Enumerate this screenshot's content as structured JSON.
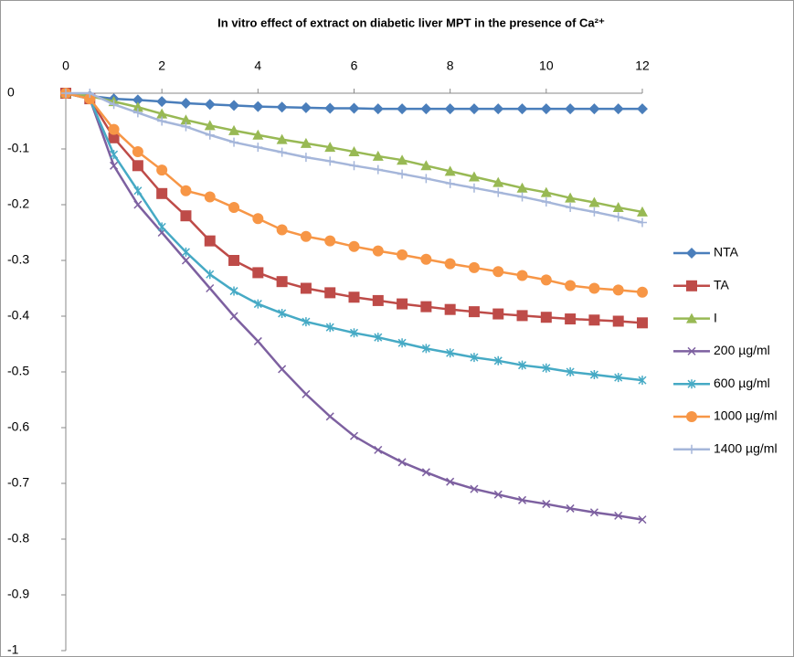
{
  "chart_data": {
    "type": "line",
    "title": "In vitro effect of extract on diabetic liver MPT in the presence of Ca²⁺",
    "x": [
      0,
      0.5,
      1,
      1.5,
      2,
      2.5,
      3,
      3.5,
      4,
      4.5,
      5,
      5.5,
      6,
      6.5,
      7,
      7.5,
      8,
      8.5,
      9,
      9.5,
      10,
      10.5,
      11,
      11.5,
      12
    ],
    "xlim": [
      0,
      12
    ],
    "xticks": [
      0,
      2,
      4,
      6,
      8,
      10,
      12
    ],
    "ylim": [
      -1,
      0
    ],
    "yticks": [
      0,
      -0.1,
      -0.2,
      -0.3,
      -0.4,
      -0.5,
      -0.6,
      -0.7,
      -0.8,
      -0.9,
      -1
    ],
    "legend": "right",
    "series": [
      {
        "name": "NTA",
        "color": "#4a7ebb",
        "marker": "diamond",
        "values": [
          0,
          -0.005,
          -0.01,
          -0.012,
          -0.015,
          -0.018,
          -0.02,
          -0.022,
          -0.024,
          -0.025,
          -0.026,
          -0.027,
          -0.027,
          -0.028,
          -0.028,
          -0.028,
          -0.028,
          -0.028,
          -0.028,
          -0.028,
          -0.028,
          -0.028,
          -0.028,
          -0.028,
          -0.028
        ]
      },
      {
        "name": "TA",
        "color": "#be4b48",
        "marker": "square",
        "values": [
          0,
          -0.01,
          -0.08,
          -0.13,
          -0.18,
          -0.22,
          -0.265,
          -0.3,
          -0.322,
          -0.338,
          -0.35,
          -0.358,
          -0.366,
          -0.372,
          -0.378,
          -0.383,
          -0.388,
          -0.392,
          -0.396,
          -0.399,
          -0.402,
          -0.405,
          -0.407,
          -0.409,
          -0.412
        ]
      },
      {
        "name": "I",
        "color": "#98b954",
        "marker": "triangle",
        "values": [
          0,
          -0.005,
          -0.015,
          -0.025,
          -0.037,
          -0.048,
          -0.058,
          -0.067,
          -0.075,
          -0.083,
          -0.09,
          -0.097,
          -0.105,
          -0.113,
          -0.12,
          -0.13,
          -0.14,
          -0.15,
          -0.16,
          -0.17,
          -0.178,
          -0.188,
          -0.196,
          -0.205,
          -0.213
        ]
      },
      {
        "name": "200 µg/ml",
        "color": "#7d60a0",
        "marker": "x",
        "values": [
          0,
          -0.01,
          -0.13,
          -0.2,
          -0.25,
          -0.3,
          -0.35,
          -0.4,
          -0.445,
          -0.495,
          -0.54,
          -0.58,
          -0.615,
          -0.64,
          -0.662,
          -0.68,
          -0.697,
          -0.71,
          -0.72,
          -0.73,
          -0.737,
          -0.745,
          -0.752,
          -0.758,
          -0.765
        ]
      },
      {
        "name": "600 µg/ml",
        "color": "#46aac5",
        "marker": "star",
        "values": [
          0,
          -0.01,
          -0.11,
          -0.175,
          -0.24,
          -0.285,
          -0.325,
          -0.355,
          -0.378,
          -0.395,
          -0.41,
          -0.42,
          -0.43,
          -0.438,
          -0.448,
          -0.458,
          -0.466,
          -0.474,
          -0.48,
          -0.488,
          -0.493,
          -0.5,
          -0.505,
          -0.51,
          -0.515
        ]
      },
      {
        "name": "1000 µg/ml",
        "color": "#f79646",
        "marker": "circle",
        "values": [
          0,
          -0.01,
          -0.065,
          -0.105,
          -0.138,
          -0.175,
          -0.186,
          -0.205,
          -0.225,
          -0.245,
          -0.257,
          -0.265,
          -0.275,
          -0.283,
          -0.29,
          -0.298,
          -0.306,
          -0.313,
          -0.32,
          -0.327,
          -0.335,
          -0.345,
          -0.35,
          -0.353,
          -0.357
        ]
      },
      {
        "name": "1400 µg/ml",
        "color": "#a5b6da",
        "marker": "plus",
        "values": [
          0,
          0,
          -0.02,
          -0.035,
          -0.05,
          -0.06,
          -0.075,
          -0.088,
          -0.097,
          -0.106,
          -0.115,
          -0.122,
          -0.13,
          -0.137,
          -0.145,
          -0.153,
          -0.162,
          -0.17,
          -0.178,
          -0.186,
          -0.195,
          -0.205,
          -0.213,
          -0.222,
          -0.232
        ]
      }
    ]
  }
}
